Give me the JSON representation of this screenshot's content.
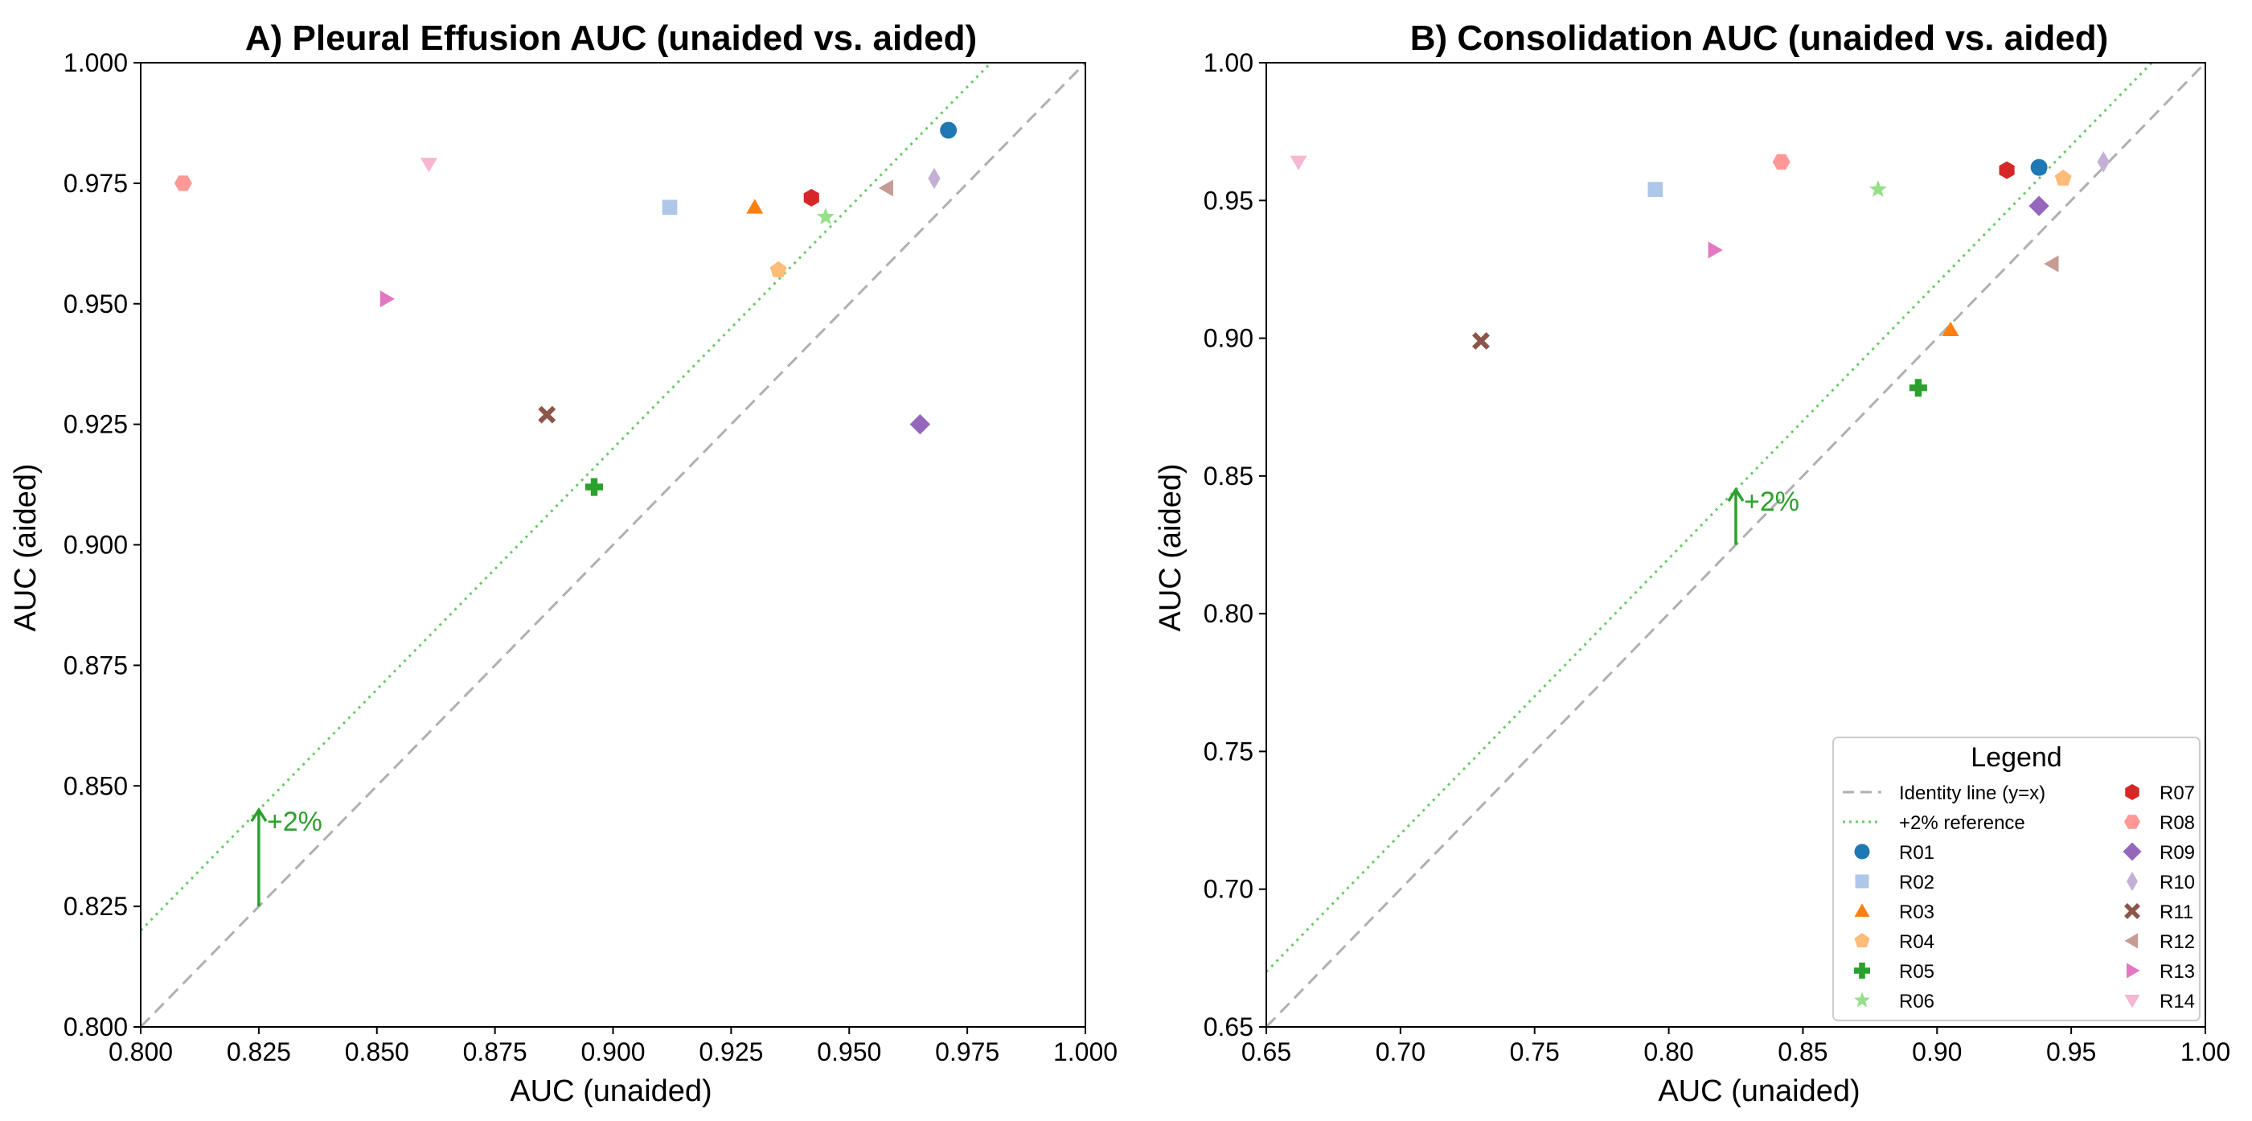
{
  "markers": {
    "R01": {
      "color": "#1f77b4",
      "shape": "circle"
    },
    "R02": {
      "color": "#aec7e8",
      "shape": "square"
    },
    "R03": {
      "color": "#ff7f0e",
      "shape": "triangle-up"
    },
    "R04": {
      "color": "#ffbb78",
      "shape": "pentagon"
    },
    "R05": {
      "color": "#2ca02c",
      "shape": "plus"
    },
    "R06": {
      "color": "#98df8a",
      "shape": "star"
    },
    "R07": {
      "color": "#d62728",
      "shape": "hexagon"
    },
    "R08": {
      "color": "#ff9896",
      "shape": "hexagon-flat"
    },
    "R09": {
      "color": "#9467bd",
      "shape": "diamond"
    },
    "R10": {
      "color": "#c5b0d5",
      "shape": "thin-diamond"
    },
    "R11": {
      "color": "#8c564b",
      "shape": "x"
    },
    "R12": {
      "color": "#c49c94",
      "shape": "triangle-left"
    },
    "R13": {
      "color": "#e377c2",
      "shape": "triangle-right"
    },
    "R14": {
      "color": "#f7b6d2",
      "shape": "triangle-down"
    }
  },
  "reference_colors": {
    "identity": "#b0b0b0",
    "plus2": "#66cc66",
    "arrow": "#2ca02c"
  },
  "legend": {
    "title": "Legend",
    "identity_label": "Identity line (y=x)",
    "plus2_label": "+2% reference",
    "readers": [
      "R01",
      "R02",
      "R03",
      "R04",
      "R05",
      "R06",
      "R07",
      "R08",
      "R09",
      "R10",
      "R11",
      "R12",
      "R13",
      "R14"
    ]
  },
  "chart_data": [
    {
      "type": "scatter",
      "title": "A) Pleural Effusion AUC (unaided vs. aided)",
      "xlabel": "AUC (unaided)",
      "ylabel": "AUC (aided)",
      "xlim": [
        0.8,
        1.0
      ],
      "ylim": [
        0.8,
        1.0
      ],
      "xticks": [
        "0.800",
        "0.825",
        "0.850",
        "0.875",
        "0.900",
        "0.925",
        "0.950",
        "0.975",
        "1.000"
      ],
      "yticks": [
        "0.800",
        "0.825",
        "0.850",
        "0.875",
        "0.900",
        "0.925",
        "0.950",
        "0.975",
        "1.000"
      ],
      "grid": false,
      "annotation": {
        "text": "+2%",
        "x": 0.825,
        "y_from": 0.825,
        "y_to": 0.845
      },
      "points": [
        {
          "name": "R01",
          "x": 0.971,
          "y": 0.986
        },
        {
          "name": "R02",
          "x": 0.912,
          "y": 0.97
        },
        {
          "name": "R03",
          "x": 0.93,
          "y": 0.97
        },
        {
          "name": "R04",
          "x": 0.935,
          "y": 0.957
        },
        {
          "name": "R05",
          "x": 0.896,
          "y": 0.912
        },
        {
          "name": "R06",
          "x": 0.945,
          "y": 0.968
        },
        {
          "name": "R07",
          "x": 0.942,
          "y": 0.972
        },
        {
          "name": "R08",
          "x": 0.809,
          "y": 0.975
        },
        {
          "name": "R09",
          "x": 0.965,
          "y": 0.925
        },
        {
          "name": "R10",
          "x": 0.968,
          "y": 0.976
        },
        {
          "name": "R11",
          "x": 0.886,
          "y": 0.927
        },
        {
          "name": "R12",
          "x": 0.958,
          "y": 0.974
        },
        {
          "name": "R13",
          "x": 0.852,
          "y": 0.951
        },
        {
          "name": "R14",
          "x": 0.861,
          "y": 0.979
        }
      ]
    },
    {
      "type": "scatter",
      "title": "B) Consolidation AUC (unaided vs. aided)",
      "xlabel": "AUC (unaided)",
      "ylabel": "AUC (aided)",
      "xlim": [
        0.65,
        1.0
      ],
      "ylim": [
        0.65,
        1.0
      ],
      "xticks": [
        "0.65",
        "0.70",
        "0.75",
        "0.80",
        "0.85",
        "0.90",
        "0.95",
        "1.00"
      ],
      "yticks": [
        "0.65",
        "0.70",
        "0.75",
        "0.80",
        "0.85",
        "0.90",
        "0.95",
        "1.00"
      ],
      "grid": false,
      "annotation": {
        "text": "+2%",
        "x": 0.825,
        "y_from": 0.825,
        "y_to": 0.845
      },
      "points": [
        {
          "name": "R01",
          "x": 0.938,
          "y": 0.962
        },
        {
          "name": "R02",
          "x": 0.795,
          "y": 0.954
        },
        {
          "name": "R03",
          "x": 0.905,
          "y": 0.903
        },
        {
          "name": "R04",
          "x": 0.947,
          "y": 0.958
        },
        {
          "name": "R05",
          "x": 0.893,
          "y": 0.882
        },
        {
          "name": "R06",
          "x": 0.878,
          "y": 0.954
        },
        {
          "name": "R07",
          "x": 0.926,
          "y": 0.961
        },
        {
          "name": "R08",
          "x": 0.842,
          "y": 0.964
        },
        {
          "name": "R09",
          "x": 0.938,
          "y": 0.948
        },
        {
          "name": "R10",
          "x": 0.962,
          "y": 0.964
        },
        {
          "name": "R11",
          "x": 0.73,
          "y": 0.899
        },
        {
          "name": "R12",
          "x": 0.943,
          "y": 0.927
        },
        {
          "name": "R13",
          "x": 0.817,
          "y": 0.932
        },
        {
          "name": "R14",
          "x": 0.662,
          "y": 0.964
        }
      ]
    }
  ]
}
